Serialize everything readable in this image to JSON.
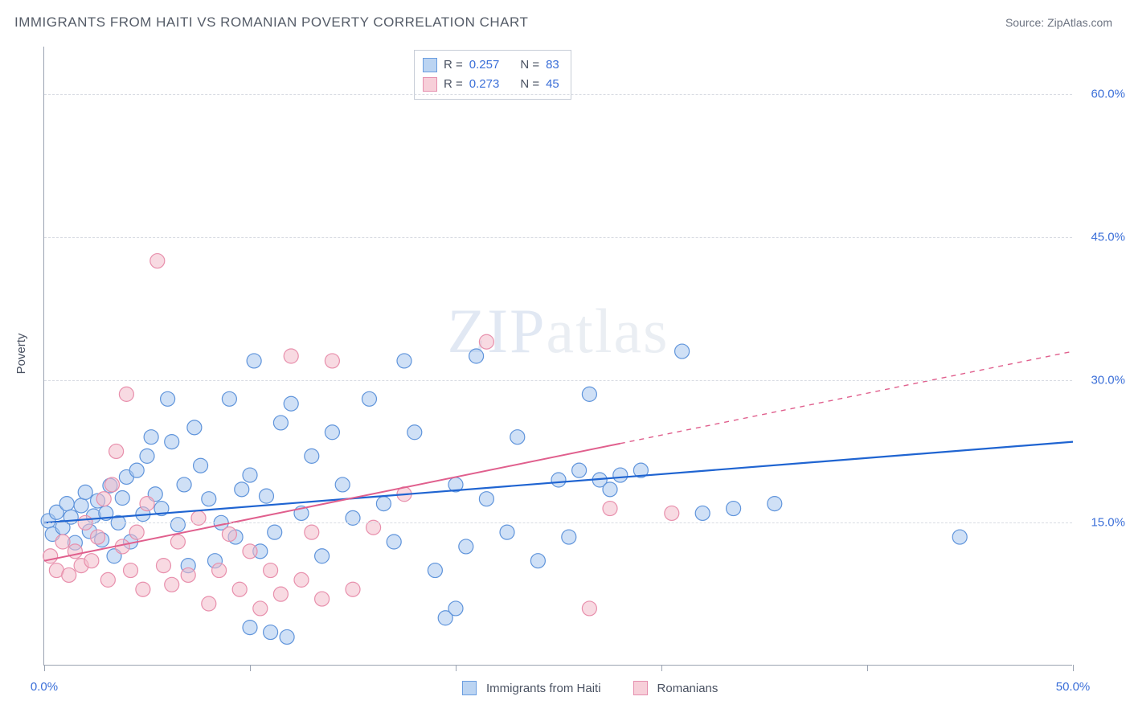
{
  "title": "IMMIGRANTS FROM HAITI VS ROMANIAN POVERTY CORRELATION CHART",
  "source_label": "Source:",
  "source_name": "ZipAtlas.com",
  "y_axis_label": "Poverty",
  "watermark_a": "ZIP",
  "watermark_b": "atlas",
  "chart": {
    "type": "scatter",
    "xlim": [
      0,
      50
    ],
    "ylim": [
      0,
      65
    ],
    "x_ticks": [
      0,
      10,
      20,
      30,
      40,
      50
    ],
    "x_tick_labels": {
      "0": "0.0%",
      "50": "50.0%"
    },
    "y_gridlines": [
      15,
      30,
      45,
      60
    ],
    "y_tick_labels": {
      "15": "15.0%",
      "30": "30.0%",
      "45": "45.0%",
      "60": "60.0%"
    },
    "background_color": "#ffffff",
    "grid_color": "#d9dce3",
    "axis_color": "#9aa3b2",
    "marker_radius": 9,
    "marker_opacity": 0.55,
    "marker_stroke_width": 1.2,
    "series": [
      {
        "name": "Immigrants from Haiti",
        "color_fill": "#a7c6ee",
        "color_stroke": "#5f94db",
        "R": 0.257,
        "N": 83,
        "trend": {
          "color": "#1f64d1",
          "width": 2.2,
          "x1": 0,
          "y1": 15.0,
          "x2": 50,
          "y2": 23.5,
          "solid_until_x": 50
        },
        "points": [
          [
            0.2,
            15.2
          ],
          [
            0.4,
            13.8
          ],
          [
            0.6,
            16.1
          ],
          [
            0.9,
            14.5
          ],
          [
            1.1,
            17.0
          ],
          [
            1.3,
            15.6
          ],
          [
            1.5,
            12.9
          ],
          [
            1.8,
            16.8
          ],
          [
            2.0,
            18.2
          ],
          [
            2.2,
            14.1
          ],
          [
            2.4,
            15.7
          ],
          [
            2.6,
            17.3
          ],
          [
            2.8,
            13.2
          ],
          [
            3.0,
            16.0
          ],
          [
            3.2,
            18.9
          ],
          [
            3.4,
            11.5
          ],
          [
            3.6,
            15.0
          ],
          [
            3.8,
            17.6
          ],
          [
            4.0,
            19.8
          ],
          [
            4.2,
            13.0
          ],
          [
            4.5,
            20.5
          ],
          [
            4.8,
            15.9
          ],
          [
            5.0,
            22.0
          ],
          [
            5.2,
            24.0
          ],
          [
            5.4,
            18.0
          ],
          [
            5.7,
            16.5
          ],
          [
            6.0,
            28.0
          ],
          [
            6.2,
            23.5
          ],
          [
            6.5,
            14.8
          ],
          [
            6.8,
            19.0
          ],
          [
            7.0,
            10.5
          ],
          [
            7.3,
            25.0
          ],
          [
            7.6,
            21.0
          ],
          [
            8.0,
            17.5
          ],
          [
            8.3,
            11.0
          ],
          [
            8.6,
            15.0
          ],
          [
            9.0,
            28.0
          ],
          [
            9.3,
            13.5
          ],
          [
            9.6,
            18.5
          ],
          [
            10.0,
            20.0
          ],
          [
            10.2,
            32.0
          ],
          [
            10.5,
            12.0
          ],
          [
            10.8,
            17.8
          ],
          [
            11.2,
            14.0
          ],
          [
            11.5,
            25.5
          ],
          [
            11.8,
            3.0
          ],
          [
            12.0,
            27.5
          ],
          [
            12.5,
            16.0
          ],
          [
            13.0,
            22.0
          ],
          [
            13.5,
            11.5
          ],
          [
            14.0,
            24.5
          ],
          [
            14.5,
            19.0
          ],
          [
            15.0,
            15.5
          ],
          [
            15.8,
            28.0
          ],
          [
            16.5,
            17.0
          ],
          [
            17.0,
            13.0
          ],
          [
            17.5,
            32.0
          ],
          [
            18.0,
            24.5
          ],
          [
            19.0,
            10.0
          ],
          [
            19.5,
            5.0
          ],
          [
            20.0,
            19.0
          ],
          [
            20.5,
            12.5
          ],
          [
            21.0,
            32.5
          ],
          [
            21.5,
            17.5
          ],
          [
            22.5,
            14.0
          ],
          [
            23.0,
            24.0
          ],
          [
            24.0,
            11.0
          ],
          [
            25.0,
            19.5
          ],
          [
            25.5,
            13.5
          ],
          [
            26.0,
            20.5
          ],
          [
            26.5,
            28.5
          ],
          [
            27.0,
            19.5
          ],
          [
            27.5,
            18.5
          ],
          [
            28.0,
            20.0
          ],
          [
            29.0,
            20.5
          ],
          [
            31.0,
            33.0
          ],
          [
            32.0,
            16.0
          ],
          [
            33.5,
            16.5
          ],
          [
            35.5,
            17.0
          ],
          [
            44.5,
            13.5
          ],
          [
            10.0,
            4.0
          ],
          [
            11.0,
            3.5
          ],
          [
            20.0,
            6.0
          ]
        ]
      },
      {
        "name": "Romanians",
        "color_fill": "#f3bccb",
        "color_stroke": "#e88fac",
        "R": 0.273,
        "N": 45,
        "trend": {
          "color": "#e05f8d",
          "width": 2.0,
          "x1": 0,
          "y1": 11.0,
          "x2": 50,
          "y2": 33.0,
          "solid_until_x": 28
        },
        "points": [
          [
            0.3,
            11.5
          ],
          [
            0.6,
            10.0
          ],
          [
            0.9,
            13.0
          ],
          [
            1.2,
            9.5
          ],
          [
            1.5,
            12.0
          ],
          [
            1.8,
            10.5
          ],
          [
            2.0,
            15.0
          ],
          [
            2.3,
            11.0
          ],
          [
            2.6,
            13.5
          ],
          [
            2.9,
            17.5
          ],
          [
            3.1,
            9.0
          ],
          [
            3.3,
            19.0
          ],
          [
            3.5,
            22.5
          ],
          [
            3.8,
            12.5
          ],
          [
            4.0,
            28.5
          ],
          [
            4.2,
            10.0
          ],
          [
            4.5,
            14.0
          ],
          [
            4.8,
            8.0
          ],
          [
            5.0,
            17.0
          ],
          [
            5.5,
            42.5
          ],
          [
            5.8,
            10.5
          ],
          [
            6.2,
            8.5
          ],
          [
            6.5,
            13.0
          ],
          [
            7.0,
            9.5
          ],
          [
            7.5,
            15.5
          ],
          [
            8.0,
            6.5
          ],
          [
            8.5,
            10.0
          ],
          [
            9.0,
            13.8
          ],
          [
            9.5,
            8.0
          ],
          [
            10.0,
            12.0
          ],
          [
            10.5,
            6.0
          ],
          [
            11.0,
            10.0
          ],
          [
            11.5,
            7.5
          ],
          [
            12.0,
            32.5
          ],
          [
            12.5,
            9.0
          ],
          [
            13.0,
            14.0
          ],
          [
            13.5,
            7.0
          ],
          [
            14.0,
            32.0
          ],
          [
            15.0,
            8.0
          ],
          [
            16.0,
            14.5
          ],
          [
            17.5,
            18.0
          ],
          [
            21.5,
            34.0
          ],
          [
            26.5,
            6.0
          ],
          [
            27.5,
            16.5
          ],
          [
            30.5,
            16.0
          ]
        ]
      }
    ]
  },
  "legend_top": {
    "R_label": "R =",
    "N_label": "N ="
  },
  "legend_bottom": {
    "series1": "Immigrants from Haiti",
    "series2": "Romanians"
  }
}
